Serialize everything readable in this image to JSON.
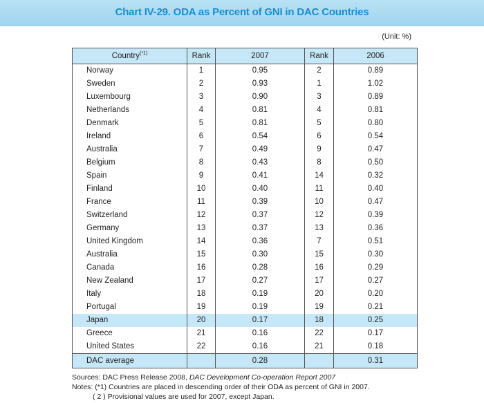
{
  "title": "Chart IV-29. ODA as Percent of GNI in DAC Countries",
  "unit": "(Unit: %)",
  "headers": {
    "country": "Country",
    "country_note": "(*1)",
    "rank2007": "Rank",
    "y2007": "2007",
    "rank2006": "Rank",
    "y2006": "2006"
  },
  "rows": [
    [
      "Norway",
      "1",
      "0.95",
      "2",
      "0.89"
    ],
    [
      "Sweden",
      "2",
      "0.93",
      "1",
      "1.02"
    ],
    [
      "Luxembourg",
      "3",
      "0.90",
      "3",
      "0.89"
    ],
    [
      "Netherlands",
      "4",
      "0.81",
      "4",
      "0.81"
    ],
    [
      "Denmark",
      "5",
      "0.81",
      "5",
      "0.80"
    ],
    [
      "Ireland",
      "6",
      "0.54",
      "6",
      "0.54"
    ],
    [
      "Australia",
      "7",
      "0.49",
      "9",
      "0.47"
    ],
    [
      "Belgium",
      "8",
      "0.43",
      "8",
      "0.50"
    ],
    [
      "Spain",
      "9",
      "0.41",
      "14",
      "0.32"
    ],
    [
      "Finland",
      "10",
      "0.40",
      "11",
      "0.40"
    ],
    [
      "France",
      "11",
      "0.39",
      "10",
      "0.47"
    ],
    [
      "Switzerland",
      "12",
      "0.37",
      "12",
      "0.39"
    ],
    [
      "Germany",
      "13",
      "0.37",
      "13",
      "0.36"
    ],
    [
      "United Kingdom",
      "14",
      "0.36",
      "7",
      "0.51"
    ],
    [
      "Australia",
      "15",
      "0.30",
      "15",
      "0.30"
    ],
    [
      "Canada",
      "16",
      "0.28",
      "16",
      "0.29"
    ],
    [
      "New Zealand",
      "17",
      "0.27",
      "17",
      "0.27"
    ],
    [
      "Italy",
      "18",
      "0.19",
      "20",
      "0.20"
    ],
    [
      "Portugal",
      "19",
      "0.19",
      "19",
      "0.21"
    ],
    [
      "Japan",
      "20",
      "0.17",
      "18",
      "0.25"
    ],
    [
      "Greece",
      "21",
      "0.16",
      "22",
      "0.17"
    ],
    [
      "United States",
      "22",
      "0.16",
      "21",
      "0.18"
    ]
  ],
  "highlight_row": "Japan",
  "average": [
    "DAC average",
    "",
    "0.28",
    "",
    "0.31"
  ],
  "sources_label": "Sources: DAC Press Release 2008, ",
  "sources_italic": "DAC Development Co-operation Report 2007",
  "note1": "Notes: (*1) Countries are placed in descending order of their ODA as percent of GNI in 2007.",
  "note2": "( 2 ) Provisional values are used for 2007, except Japan.",
  "colors": {
    "title": "#1b8ccc",
    "band": "#a8d9f0",
    "highlight": "#c5e7f7"
  }
}
